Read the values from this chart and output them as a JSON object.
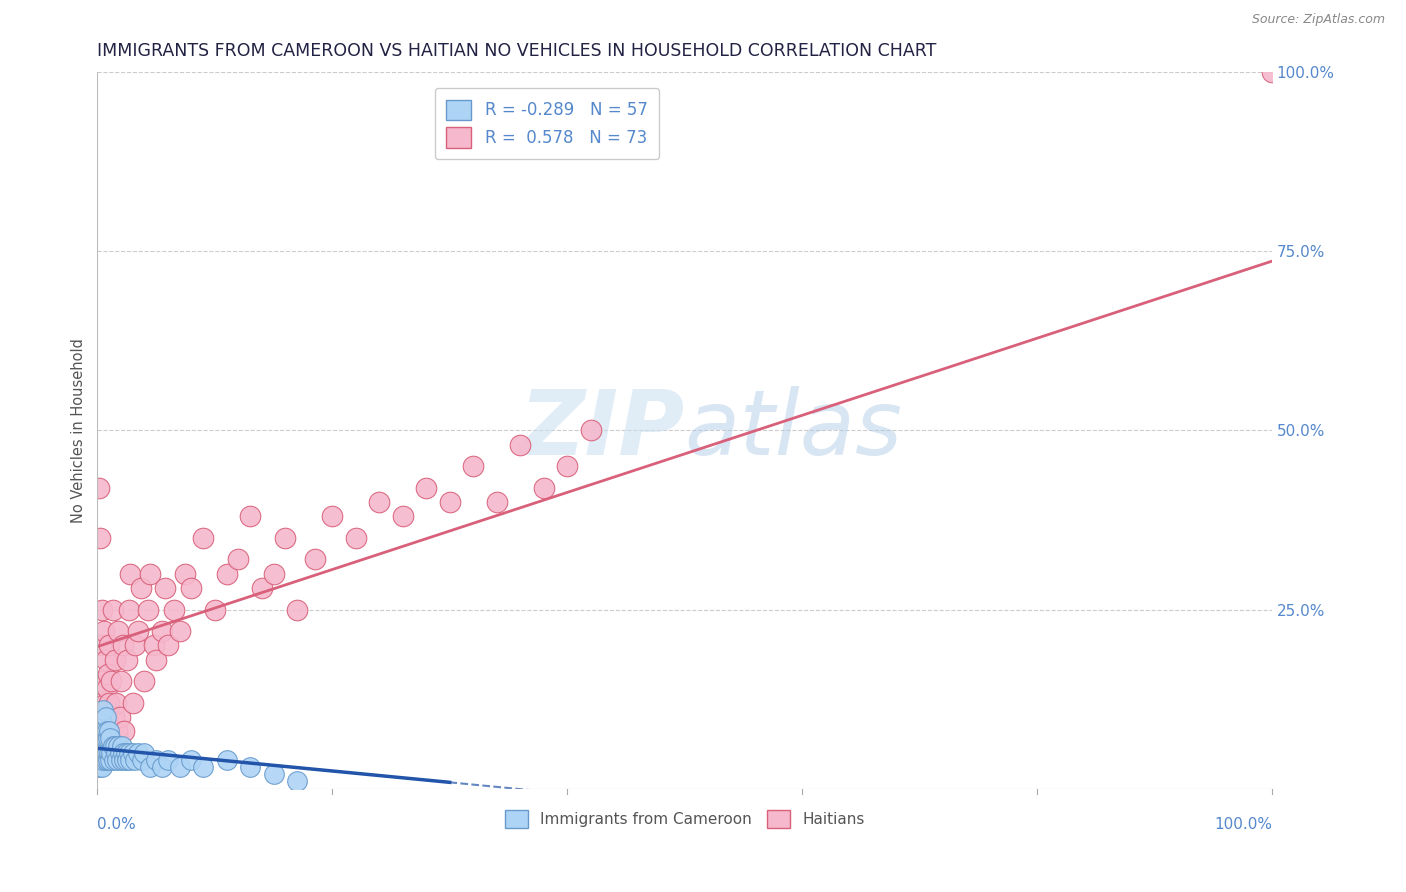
{
  "title": "IMMIGRANTS FROM CAMEROON VS HAITIAN NO VEHICLES IN HOUSEHOLD CORRELATION CHART",
  "source": "Source: ZipAtlas.com",
  "ylabel": "No Vehicles in Household",
  "xlim": [
    0,
    1.0
  ],
  "ylim": [
    0,
    1.0
  ],
  "background": "#ffffff",
  "watermark_zip": "ZIP",
  "watermark_atlas": "atlas",
  "legend_label1": "R = -0.289   N = 57",
  "legend_label2": "R =  0.578   N = 73",
  "legend_color1": "#aed4f5",
  "legend_color2": "#f5b8cc",
  "r_cameroon": -0.289,
  "n_cameroon": 57,
  "r_haitian": 0.578,
  "n_haitian": 73,
  "line_color_cameroon": "#2255aa",
  "line_color_haitian": "#d9607a",
  "scatter_color_cameroon": "#aed4f5",
  "scatter_color_haitian": "#f5b8cc",
  "dot_edge_cameroon": "#6699cc",
  "dot_edge_haitian": "#d9607a",
  "grid_color": "#cccccc",
  "grid_style": "--",
  "title_color": "#222244",
  "tick_label_color": "#5588cc",
  "ytick_values": [
    0.25,
    0.5,
    0.75,
    1.0
  ],
  "ytick_labels": [
    "25.0%",
    "50.0%",
    "75.0%",
    "100.0%"
  ],
  "cameroon_x": [
    0.001,
    0.002,
    0.002,
    0.003,
    0.003,
    0.003,
    0.004,
    0.004,
    0.004,
    0.005,
    0.005,
    0.005,
    0.006,
    0.006,
    0.007,
    0.007,
    0.007,
    0.008,
    0.008,
    0.009,
    0.009,
    0.01,
    0.01,
    0.011,
    0.011,
    0.012,
    0.013,
    0.014,
    0.015,
    0.016,
    0.017,
    0.018,
    0.019,
    0.02,
    0.021,
    0.022,
    0.023,
    0.024,
    0.025,
    0.027,
    0.028,
    0.03,
    0.032,
    0.035,
    0.038,
    0.04,
    0.045,
    0.05,
    0.055,
    0.06,
    0.07,
    0.08,
    0.09,
    0.11,
    0.13,
    0.15,
    0.17
  ],
  "cameroon_y": [
    0.03,
    0.05,
    0.08,
    0.04,
    0.07,
    0.1,
    0.03,
    0.06,
    0.09,
    0.04,
    0.07,
    0.11,
    0.05,
    0.08,
    0.04,
    0.07,
    0.1,
    0.05,
    0.08,
    0.04,
    0.07,
    0.05,
    0.08,
    0.04,
    0.07,
    0.05,
    0.06,
    0.04,
    0.06,
    0.05,
    0.04,
    0.06,
    0.05,
    0.04,
    0.06,
    0.05,
    0.04,
    0.05,
    0.04,
    0.05,
    0.04,
    0.05,
    0.04,
    0.05,
    0.04,
    0.05,
    0.03,
    0.04,
    0.03,
    0.04,
    0.03,
    0.04,
    0.03,
    0.04,
    0.03,
    0.02,
    0.01
  ],
  "haitian_x": [
    0.001,
    0.002,
    0.002,
    0.003,
    0.003,
    0.004,
    0.004,
    0.005,
    0.005,
    0.006,
    0.006,
    0.007,
    0.007,
    0.008,
    0.008,
    0.009,
    0.009,
    0.01,
    0.01,
    0.011,
    0.012,
    0.013,
    0.014,
    0.015,
    0.016,
    0.017,
    0.018,
    0.019,
    0.02,
    0.022,
    0.023,
    0.025,
    0.027,
    0.028,
    0.03,
    0.032,
    0.035,
    0.037,
    0.04,
    0.043,
    0.045,
    0.048,
    0.05,
    0.055,
    0.058,
    0.06,
    0.065,
    0.07,
    0.075,
    0.08,
    0.09,
    0.1,
    0.11,
    0.12,
    0.13,
    0.14,
    0.15,
    0.16,
    0.17,
    0.185,
    0.2,
    0.22,
    0.24,
    0.26,
    0.28,
    0.3,
    0.32,
    0.34,
    0.36,
    0.38,
    0.4,
    0.42,
    1.0
  ],
  "haitian_y": [
    0.42,
    0.08,
    0.35,
    0.1,
    0.2,
    0.12,
    0.25,
    0.08,
    0.15,
    0.1,
    0.22,
    0.12,
    0.18,
    0.08,
    0.14,
    0.1,
    0.16,
    0.12,
    0.2,
    0.08,
    0.15,
    0.25,
    0.1,
    0.18,
    0.12,
    0.08,
    0.22,
    0.1,
    0.15,
    0.2,
    0.08,
    0.18,
    0.25,
    0.3,
    0.12,
    0.2,
    0.22,
    0.28,
    0.15,
    0.25,
    0.3,
    0.2,
    0.18,
    0.22,
    0.28,
    0.2,
    0.25,
    0.22,
    0.3,
    0.28,
    0.35,
    0.25,
    0.3,
    0.32,
    0.38,
    0.28,
    0.3,
    0.35,
    0.25,
    0.32,
    0.38,
    0.35,
    0.4,
    0.38,
    0.42,
    0.4,
    0.45,
    0.4,
    0.48,
    0.42,
    0.45,
    0.5,
    1.0
  ]
}
